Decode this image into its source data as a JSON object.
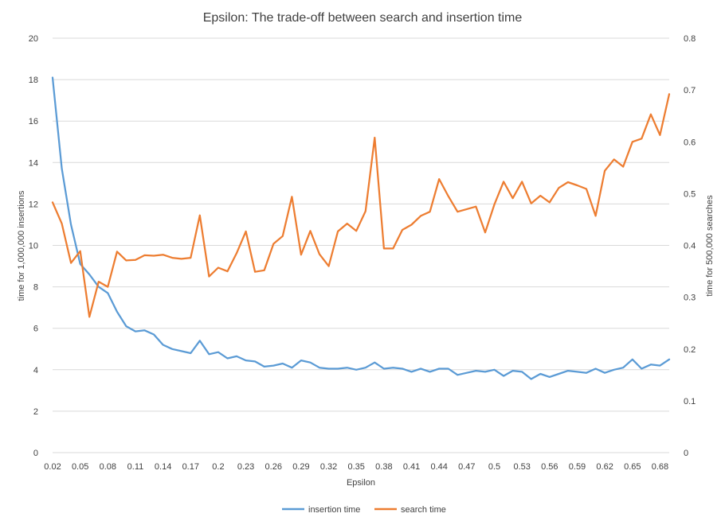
{
  "chart_data": {
    "type": "line",
    "title": "Epsilon: The trade-off between search and insertion time",
    "xlabel": "Epsilon",
    "ylabel": "time for 1,000,000 insertions",
    "y2label": "time for 500,000 searches",
    "ylim": [
      0,
      20
    ],
    "y2lim": [
      0,
      0.8
    ],
    "yticks": [
      "0",
      "2",
      "4",
      "6",
      "8",
      "10",
      "12",
      "14",
      "16",
      "18",
      "20"
    ],
    "y2ticks": [
      "0",
      "0.1",
      "0.2",
      "0.3",
      "0.4",
      "0.5",
      "0.6",
      "0.7",
      "0.8"
    ],
    "xtick_labels": [
      "0.02",
      "0.05",
      "0.08",
      "0.11",
      "0.14",
      "0.17",
      "0.2",
      "0.23",
      "0.26",
      "0.29",
      "0.32",
      "0.35",
      "0.38",
      "0.41",
      "0.44",
      "0.47",
      "0.5",
      "0.53",
      "0.56",
      "0.59",
      "0.62",
      "0.65",
      "0.68"
    ],
    "x": [
      0.02,
      0.03,
      0.04,
      0.05,
      0.06,
      0.07,
      0.08,
      0.09,
      0.1,
      0.11,
      0.12,
      0.13,
      0.14,
      0.15,
      0.16,
      0.17,
      0.18,
      0.19,
      0.2,
      0.21,
      0.22,
      0.23,
      0.24,
      0.25,
      0.26,
      0.27,
      0.28,
      0.29,
      0.3,
      0.31,
      0.32,
      0.33,
      0.34,
      0.35,
      0.36,
      0.37,
      0.38,
      0.39,
      0.4,
      0.41,
      0.42,
      0.43,
      0.44,
      0.45,
      0.46,
      0.47,
      0.48,
      0.49,
      0.5,
      0.51,
      0.52,
      0.53,
      0.54,
      0.55,
      0.56,
      0.57,
      0.58,
      0.59,
      0.6,
      0.61,
      0.62,
      0.63,
      0.64,
      0.65,
      0.66,
      0.67,
      0.68,
      0.69
    ],
    "series": [
      {
        "name": "insertion time",
        "color": "#5b9bd5",
        "axis": "left",
        "values": [
          18.1,
          13.7,
          11.0,
          9.1,
          8.6,
          8.0,
          7.7,
          6.8,
          6.1,
          5.85,
          5.9,
          5.7,
          5.2,
          5.0,
          4.9,
          4.8,
          5.4,
          4.75,
          4.85,
          4.55,
          4.65,
          4.45,
          4.4,
          4.15,
          4.2,
          4.3,
          4.1,
          4.45,
          4.35,
          4.1,
          4.05,
          4.05,
          4.1,
          4.0,
          4.1,
          4.35,
          4.05,
          4.1,
          4.05,
          3.9,
          4.05,
          3.9,
          4.05,
          4.05,
          3.75,
          3.85,
          3.95,
          3.9,
          4.0,
          3.7,
          3.95,
          3.9,
          3.55,
          3.8,
          3.65,
          3.8,
          3.95,
          3.9,
          3.85,
          4.05,
          3.85,
          4.0,
          4.1,
          4.5,
          4.05,
          4.25,
          4.2,
          4.5
        ]
      },
      {
        "name": "search time",
        "color": "#ed7d31",
        "axis": "right",
        "values": [
          0.483,
          0.442,
          0.366,
          0.389,
          0.262,
          0.33,
          0.32,
          0.388,
          0.371,
          0.372,
          0.381,
          0.38,
          0.382,
          0.376,
          0.374,
          0.376,
          0.458,
          0.34,
          0.357,
          0.35,
          0.385,
          0.427,
          0.349,
          0.352,
          0.403,
          0.418,
          0.494,
          0.382,
          0.428,
          0.383,
          0.36,
          0.427,
          0.442,
          0.428,
          0.466,
          0.608,
          0.394,
          0.394,
          0.43,
          0.44,
          0.457,
          0.465,
          0.528,
          0.495,
          0.465,
          0.47,
          0.475,
          0.425,
          0.479,
          0.523,
          0.491,
          0.523,
          0.481,
          0.496,
          0.483,
          0.511,
          0.522,
          0.516,
          0.509,
          0.457,
          0.544,
          0.566,
          0.552,
          0.6,
          0.606,
          0.653,
          0.613,
          0.692
        ]
      }
    ],
    "grid": true,
    "legend_position": "bottom"
  }
}
